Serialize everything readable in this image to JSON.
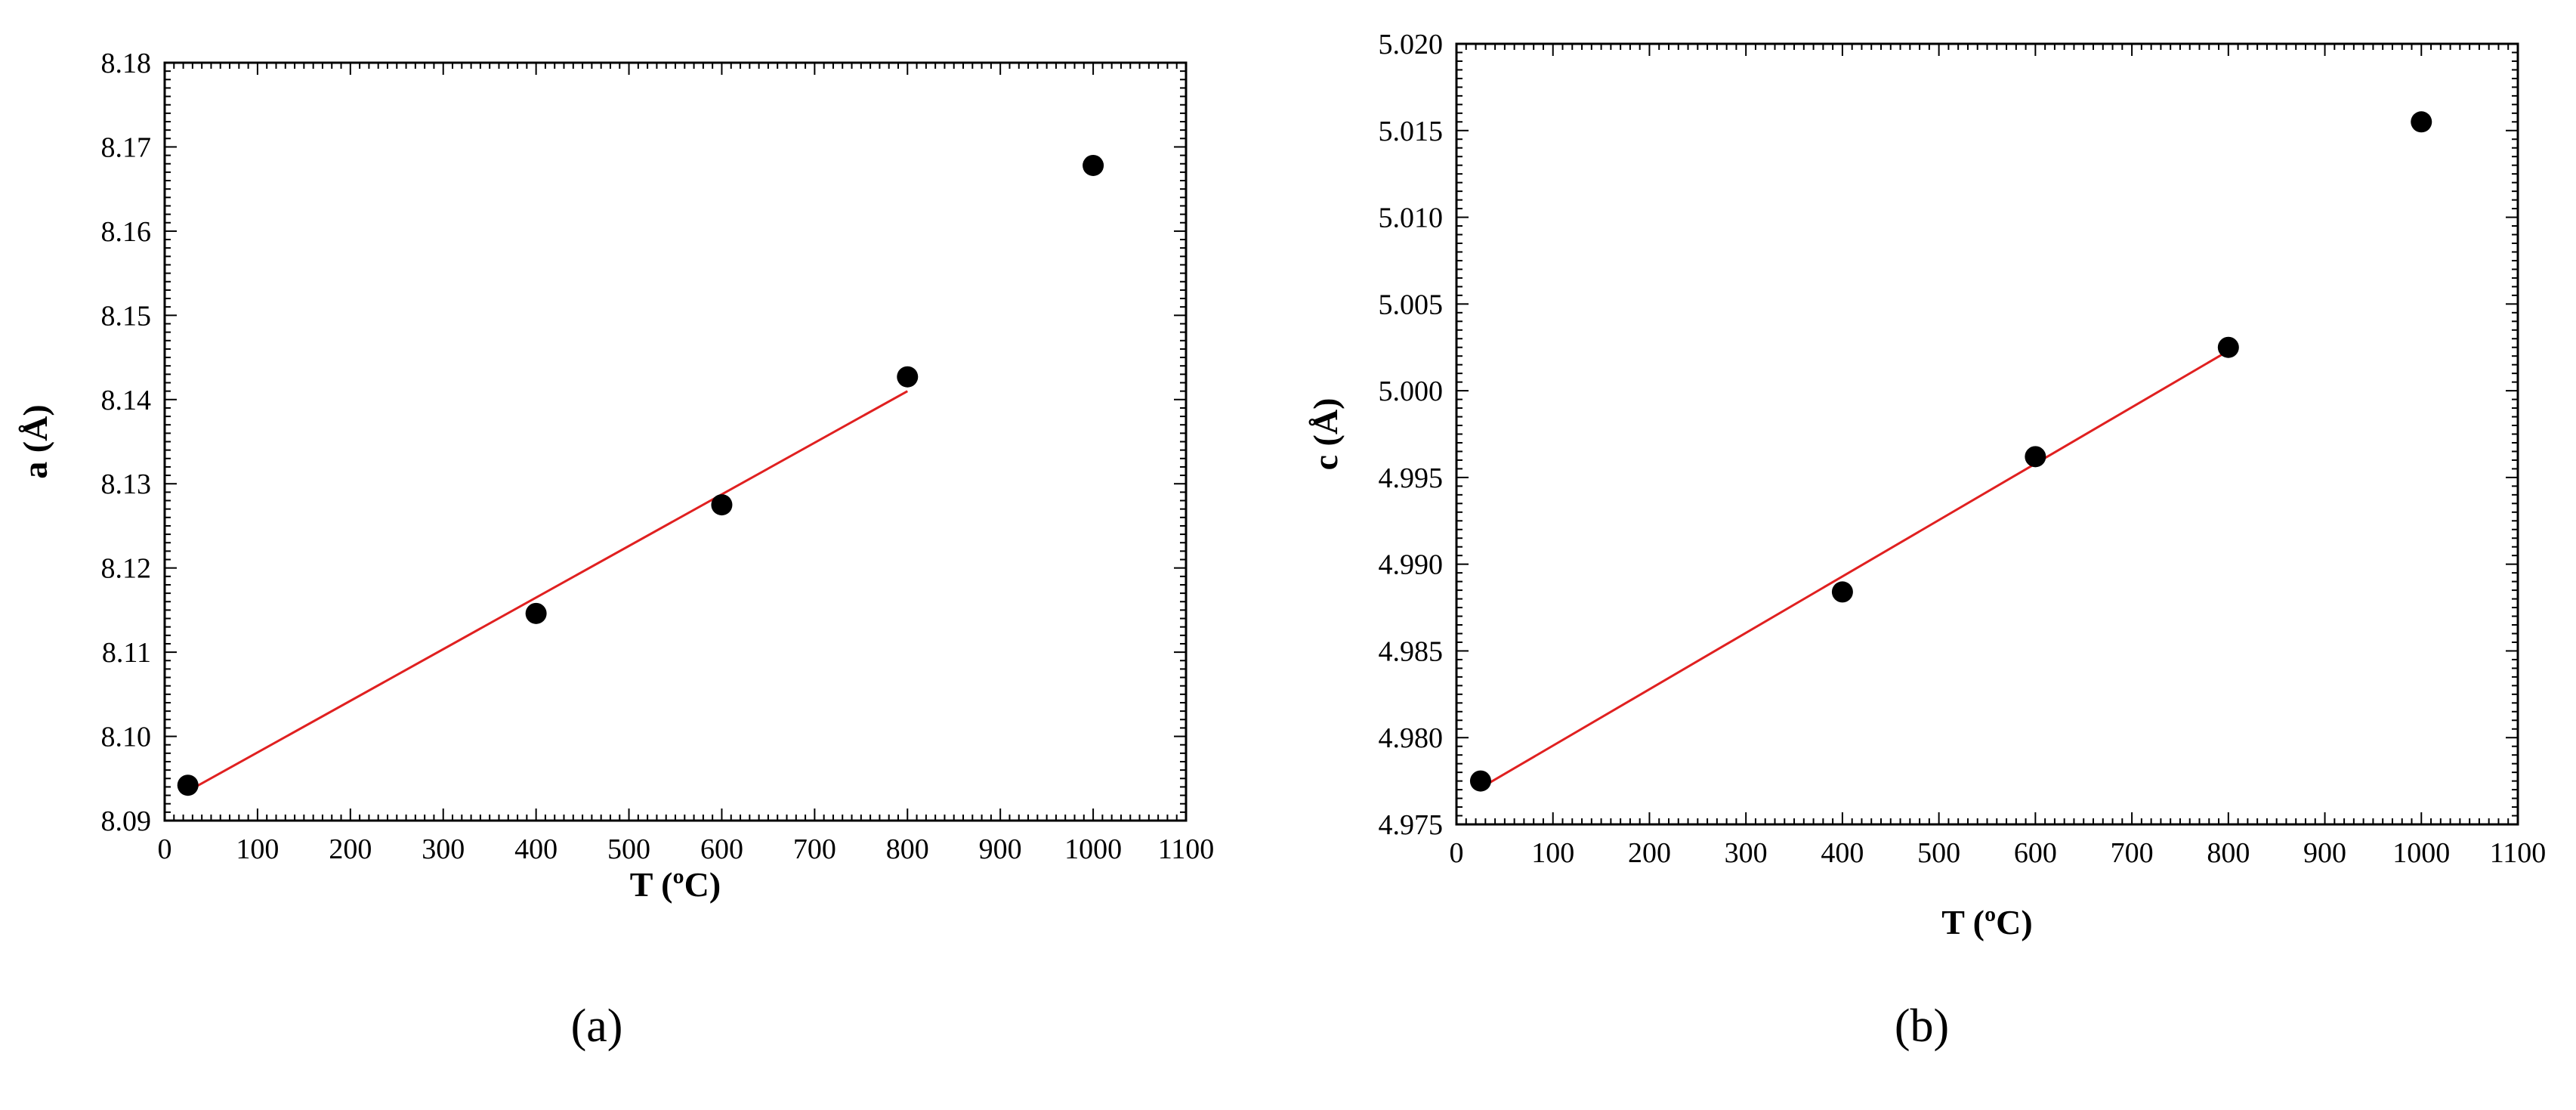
{
  "chart_data": [
    {
      "type": "scatter",
      "panel_label": "(a)",
      "xlabel": "T (ºC)",
      "ylabel": "a (Å)",
      "xlim": [
        0,
        1100
      ],
      "ylim": [
        8.09,
        8.18
      ],
      "x_ticks": [
        "0",
        "100",
        "200",
        "300",
        "400",
        "500",
        "600",
        "700",
        "800",
        "900",
        "1000",
        "1100"
      ],
      "y_ticks": [
        "8.09",
        "8.10",
        "8.11",
        "8.12",
        "8.13",
        "8.14",
        "8.15",
        "8.16",
        "8.17",
        "8.18"
      ],
      "series": [
        {
          "x": [
            25,
            400,
            600,
            800,
            1000
          ],
          "y": [
            8.0942,
            8.1146,
            8.1275,
            8.1427,
            8.1678
          ],
          "color": "#000000"
        }
      ],
      "fit_line": {
        "x": [
          25,
          800
        ],
        "y": [
          8.0935,
          8.141
        ],
        "color": "#e02020"
      },
      "grid": false
    },
    {
      "type": "scatter",
      "panel_label": "(b)",
      "xlabel": "T (ºC)",
      "ylabel": "c (Å)",
      "xlim": [
        0,
        1100
      ],
      "ylim": [
        4.975,
        5.02
      ],
      "x_ticks": [
        "0",
        "100",
        "200",
        "300",
        "400",
        "500",
        "600",
        "700",
        "800",
        "900",
        "1000",
        "1100"
      ],
      "y_ticks": [
        "4.975",
        "4.980",
        "4.985",
        "4.990",
        "4.995",
        "5.000",
        "5.005",
        "5.010",
        "5.015",
        "5.020"
      ],
      "series": [
        {
          "x": [
            25,
            400,
            600,
            800,
            1000
          ],
          "y": [
            4.9775,
            4.9884,
            4.9962,
            5.0025,
            5.0155
          ],
          "color": "#000000"
        }
      ],
      "fit_line": {
        "x": [
          25,
          800
        ],
        "y": [
          4.9771,
          5.0023
        ],
        "color": "#e02020"
      },
      "grid": false
    }
  ]
}
